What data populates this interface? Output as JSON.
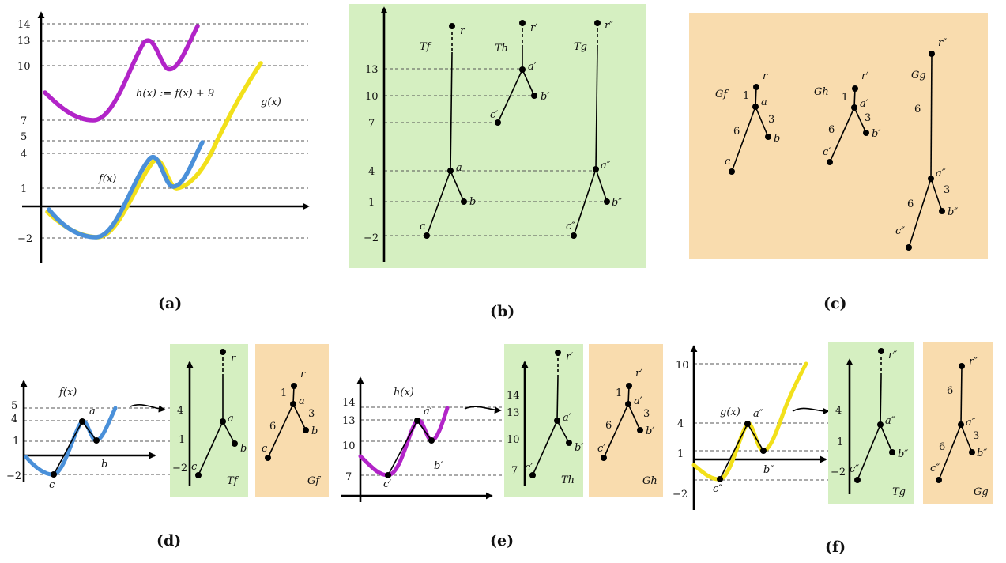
{
  "colors": {
    "f_curve": "#4a90d9",
    "g_curve": "#f2e01a",
    "h_curve": "#b224c8",
    "tree_panel": "#d5efc1",
    "graph_panel": "#f9dcae"
  },
  "captions": {
    "a": "(a)",
    "b": "(b)",
    "c": "(c)",
    "d": "(d)",
    "e": "(e)",
    "f": "(f)"
  },
  "panel_a": {
    "ticks": [
      "14",
      "13",
      "10",
      "7",
      "5",
      "4",
      "1",
      "−2"
    ],
    "f_label": "f(x)",
    "g_label": "g(x)",
    "h_label": "h(x) := f(x) + 9"
  },
  "panel_b": {
    "ticks": [
      "13",
      "10",
      "7",
      "4",
      "1",
      "−2"
    ],
    "tree_titles": [
      "Tf",
      "Th",
      "Tg"
    ],
    "tf_nodes": [
      "r",
      "a",
      "b",
      "c"
    ],
    "th_nodes": [
      "r′",
      "a′",
      "b′",
      "c′"
    ],
    "tg_nodes": [
      "r″",
      "a″",
      "b″",
      "c″"
    ]
  },
  "panel_c": {
    "graph_titles": [
      "Gf",
      "Gh",
      "Gg"
    ],
    "gf": {
      "nodes": [
        "r",
        "a",
        "b",
        "c"
      ],
      "weights": [
        "1",
        "3",
        "6"
      ]
    },
    "gh": {
      "nodes": [
        "r′",
        "a′",
        "b′",
        "c′"
      ],
      "weights": [
        "1",
        "3",
        "6"
      ]
    },
    "gg": {
      "nodes": [
        "r″",
        "a″",
        "b″",
        "c″"
      ],
      "weights": [
        "6",
        "3",
        "6"
      ]
    }
  },
  "panel_d": {
    "ticks": [
      "5",
      "4",
      "1",
      "−2"
    ],
    "curve_label": "f(x)",
    "points": [
      "a",
      "b",
      "c"
    ],
    "tree_ticks": [
      "4",
      "1",
      "−2"
    ],
    "tree_nodes": [
      "r",
      "a",
      "b",
      "c"
    ],
    "tree_title": "Tf",
    "graph_nodes": [
      "r",
      "a",
      "b",
      "c"
    ],
    "graph_weights": [
      "1",
      "3",
      "6"
    ],
    "graph_title": "Gf"
  },
  "panel_e": {
    "ticks": [
      "14",
      "13",
      "10",
      "7"
    ],
    "curve_label": "h(x)",
    "points": [
      "a′",
      "b′",
      "c′"
    ],
    "tree_ticks": [
      "14",
      "13",
      "10",
      "7"
    ],
    "tree_nodes": [
      "r′",
      "a′",
      "b′",
      "c′"
    ],
    "tree_title": "Th",
    "graph_nodes": [
      "r′",
      "a′",
      "b′",
      "c′"
    ],
    "graph_weights": [
      "1",
      "3",
      "6"
    ],
    "graph_title": "Gh"
  },
  "panel_f": {
    "ticks": [
      "10",
      "4",
      "1",
      "−2"
    ],
    "curve_label": "g(x)",
    "points": [
      "a″",
      "b″",
      "c″"
    ],
    "tree_ticks": [
      "4",
      "1",
      "−2"
    ],
    "tree_nodes": [
      "r″",
      "a″",
      "b″",
      "c″"
    ],
    "tree_title": "Tg",
    "graph_nodes": [
      "r″",
      "a″",
      "b″",
      "c″"
    ],
    "graph_weights": [
      "6",
      "3",
      "6"
    ],
    "graph_title": "Gg"
  }
}
